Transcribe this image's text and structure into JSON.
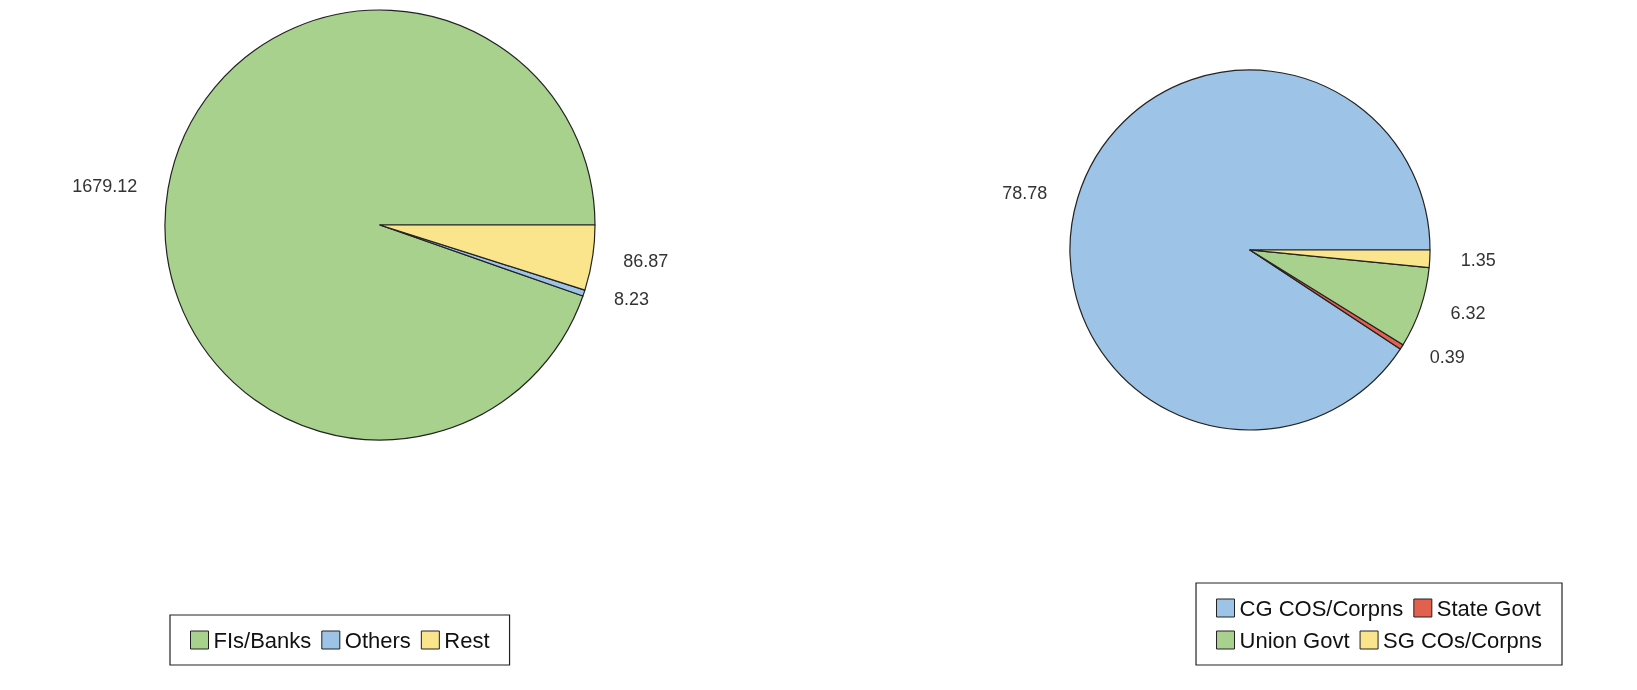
{
  "chart_data": [
    {
      "type": "pie",
      "categories": [
        "FIs/Banks",
        "Others",
        "Rest"
      ],
      "values": [
        1679.12,
        8.23,
        86.87
      ],
      "colors": [
        "#a9d18e",
        "#9dc3e6",
        "#fbe58c"
      ],
      "data_labels": true,
      "legend": "bottom left"
    },
    {
      "type": "pie",
      "categories": [
        "CG COS/Corpns",
        "State Govt",
        "Union Govt",
        "SG COs/Corpns"
      ],
      "values": [
        78.78,
        0.39,
        6.32,
        1.35
      ],
      "colors": [
        "#9dc3e6",
        "#e2604e",
        "#a9d18e",
        "#fbe58c"
      ],
      "data_labels": true,
      "legend": "bottom right"
    }
  ]
}
